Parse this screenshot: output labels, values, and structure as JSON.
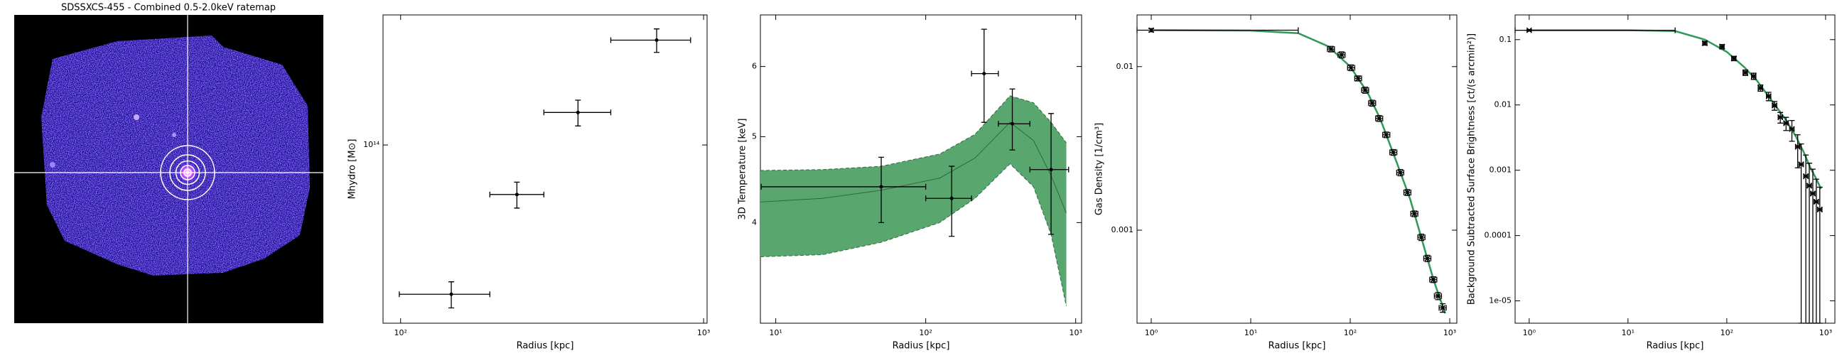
{
  "chart_data": [
    {
      "type": "image",
      "title": "SDSSXCS-455 - Combined 0.5-2.0keV ratemap"
    },
    {
      "type": "scatter",
      "xlabel": "Radius [kpc]",
      "ylabel": "Mhydro [M⊙]",
      "log_x": true,
      "log_y": true,
      "xlim": [
        87.5,
        1027
      ],
      "ylim": [
        27000000000000.0,
        260000000000000.0
      ],
      "xticks": [
        {
          "value": 100,
          "label": "10²"
        },
        {
          "value": 1000,
          "label": "10³"
        }
      ],
      "yticks": [
        {
          "value": 100000000000000.0,
          "label": "10¹⁴"
        }
      ],
      "marker": "o",
      "color": "#000000",
      "x": [
        147,
        242,
        385,
        700
      ],
      "x_low": [
        99,
        197,
        297,
        494
      ],
      "x_high": [
        197,
        297,
        494,
        906
      ],
      "values": [
        33400000000000.0,
        69500000000000.0,
        127000000000000.0,
        216000000000000.0
      ],
      "errors": [
        3200000000000.0,
        6600000000000.0,
        12000000000000.0,
        18600000000000.0
      ]
    },
    {
      "type": "scatter",
      "xlabel": "Radius [kpc]",
      "ylabel": "3D Temperature [keV]",
      "log_x": true,
      "log_y": true,
      "xlim": [
        7.9,
        1095
      ],
      "ylim": [
        3.08,
        6.86
      ],
      "xticks": [
        {
          "value": 10,
          "label": "10¹"
        },
        {
          "value": 100,
          "label": "10²"
        },
        {
          "value": 1000,
          "label": "10³"
        }
      ],
      "yticks": [
        4,
        5,
        6
      ],
      "marker": "o",
      "color": "#000000",
      "x": [
        50.5,
        149,
        245,
        378,
        685
      ],
      "x_low": [
        8,
        100,
        202,
        305,
        495
      ],
      "x_high": [
        100,
        202,
        305,
        495,
        897
      ],
      "values": [
        4.39,
        4.26,
        5.89,
        5.17,
        4.59
      ],
      "y_low": [
        4.0,
        3.86,
        5.19,
        4.83,
        3.88
      ],
      "y_high": [
        4.74,
        4.63,
        6.61,
        5.66,
        5.31
      ],
      "band": {
        "color": "#5aa66f",
        "edge_color": "#2e6b40",
        "x": [
          7.9,
          20.5,
          50.5,
          124,
          213,
          365,
          523,
          685,
          866
        ],
        "lower": [
          3.66,
          3.68,
          3.8,
          4.0,
          4.26,
          4.66,
          4.39,
          3.88,
          3.22
        ],
        "median": [
          4.22,
          4.26,
          4.35,
          4.49,
          4.73,
          5.19,
          4.95,
          4.52,
          4.1
        ],
        "upper": [
          4.58,
          4.59,
          4.63,
          4.78,
          5.03,
          5.56,
          5.46,
          5.19,
          4.92
        ]
      }
    },
    {
      "type": "scatter",
      "xlabel": "Radius [kpc]",
      "ylabel": "Gas Density [1/cm³]",
      "log_x": true,
      "log_y": true,
      "xlim": [
        0.72,
        1178
      ],
      "ylim": [
        0.00027,
        0.0207
      ],
      "xticks": [
        {
          "value": 1,
          "label": "10⁰"
        },
        {
          "value": 10,
          "label": "10¹"
        },
        {
          "value": 100,
          "label": "10²"
        },
        {
          "value": 1000,
          "label": "10³"
        }
      ],
      "yticks": [
        0.01,
        0.001
      ],
      "marker": "x",
      "color": "#000000",
      "x": [
        1,
        64,
        81.8,
        102,
        120,
        141,
        166,
        195,
        230,
        271,
        318,
        375,
        441,
        519,
        595,
        683,
        761,
        849
      ],
      "x_low": [
        0.66,
        59,
        75.4,
        94,
        111,
        130,
        153,
        180,
        212,
        250,
        293,
        346,
        406,
        478,
        548,
        629,
        701,
        782
      ],
      "x_high": [
        30,
        69.4,
        88.7,
        111,
        130,
        153,
        180,
        212,
        250,
        294,
        345,
        407,
        478,
        563,
        646,
        741,
        826,
        921
      ],
      "values": [
        0.0167,
        0.0128,
        0.0118,
        0.00984,
        0.00847,
        0.00718,
        0.00598,
        0.00482,
        0.00383,
        0.00299,
        0.00225,
        0.0017,
        0.00126,
        0.000905,
        0.000672,
        0.000499,
        0.000396,
        0.000335
      ],
      "errors": [
        0.0004,
        0.0005,
        0.0005,
        0.0004,
        0.0003,
        0.0003,
        0.00025,
        0.0002,
        0.00015,
        0.00012,
        0.0001,
        7e-05,
        5e-05,
        4e-05,
        3e-05,
        2e-05,
        2e-05,
        2e-05
      ],
      "model": {
        "color": "#2e9a57",
        "x": [
          1,
          10,
          30,
          60,
          100,
          150,
          200,
          300,
          400,
          500,
          600,
          700,
          800,
          900
        ],
        "values": [
          0.0167,
          0.0166,
          0.016,
          0.0133,
          0.01,
          0.0069,
          0.0048,
          0.0025,
          0.00155,
          0.00097,
          0.00066,
          0.00048,
          0.00038,
          0.00031
        ]
      }
    },
    {
      "type": "scatter",
      "xlabel": "Radius [kpc]",
      "ylabel": "Background Subtracted Surface Brightness [ct/(s arcmin²)]",
      "log_x": true,
      "log_y": true,
      "xlim": [
        0.72,
        1242
      ],
      "ylim": [
        4.55e-06,
        0.239
      ],
      "xticks": [
        {
          "value": 1,
          "label": "10⁰"
        },
        {
          "value": 10,
          "label": "10¹"
        },
        {
          "value": 100,
          "label": "10²"
        },
        {
          "value": 1000,
          "label": "10³"
        }
      ],
      "yticks": [
        0.1,
        0.01,
        0.001,
        0.0001,
        {
          "value": 1e-05,
          "label": "1e-05"
        }
      ],
      "marker": "x",
      "color": "#000000",
      "x": [
        1,
        59.8,
        89.7,
        118,
        154,
        187,
        219,
        265,
        304,
        348,
        398,
        456,
        522,
        566,
        631,
        684,
        743,
        805,
        874
      ],
      "x_low": [
        0.7,
        57,
        85,
        112,
        146,
        178,
        208,
        252,
        289,
        331,
        378,
        433,
        496,
        538,
        600,
        650,
        706,
        765,
        830
      ],
      "x_high": [
        30,
        63,
        94,
        124,
        162,
        197,
        230,
        279,
        320,
        366,
        419,
        480,
        549,
        596,
        664,
        720,
        782,
        847,
        920
      ],
      "values": [
        0.139,
        0.0883,
        0.078,
        0.0515,
        0.0313,
        0.0276,
        0.0182,
        0.0136,
        0.0098,
        0.00647,
        0.00526,
        0.00428,
        0.00229,
        0.00123,
        0.00081,
        0.00058,
        0.00044,
        0.00033,
        0.00025
      ],
      "errors": [
        0.004,
        0.006,
        0.006,
        0.004,
        0.003,
        0.003,
        0.002,
        0.002,
        0.0015,
        0.0012,
        0.0012,
        0.0015,
        0.0012,
        0.0013,
        0.0009,
        0.0007,
        0.0006,
        0.0004,
        0.0003
      ],
      "model": {
        "color": "#2e9a57",
        "x": [
          1,
          10,
          30,
          60,
          100,
          150,
          200,
          300,
          400,
          500,
          600,
          700,
          800,
          900
        ],
        "values": [
          0.139,
          0.139,
          0.135,
          0.1,
          0.065,
          0.038,
          0.024,
          0.0105,
          0.0058,
          0.0033,
          0.0019,
          0.0011,
          0.00075,
          0.00052
        ]
      }
    }
  ]
}
